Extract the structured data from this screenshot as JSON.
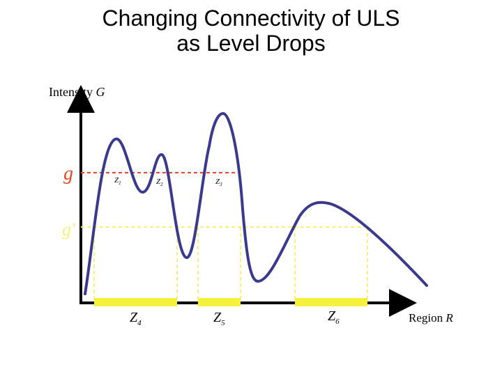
{
  "slide": {
    "title_line1": "Changing Connectivity of ULS",
    "title_line2": "as Level Drops"
  },
  "diagram": {
    "y_axis_label_text": "Intensity ",
    "y_axis_label_var": "G",
    "x_axis_label_text": "Region ",
    "x_axis_label_var": "R",
    "level_g": "g",
    "level_g_prime": "g'",
    "upper_components": [
      {
        "base": "Z",
        "sub": "1"
      },
      {
        "base": "Z",
        "sub": "2"
      },
      {
        "base": "Z",
        "sub": "3"
      }
    ],
    "lower_components": [
      {
        "base": "Z",
        "sub": "4"
      },
      {
        "base": "Z",
        "sub": "5"
      },
      {
        "base": "Z",
        "sub": "6"
      }
    ],
    "colors": {
      "curve": "#3a3a8c",
      "level_g": "#e04a1e",
      "level_g_prime": "#f6f07a",
      "segments": "#f6f23c",
      "axes": "#000000"
    }
  }
}
